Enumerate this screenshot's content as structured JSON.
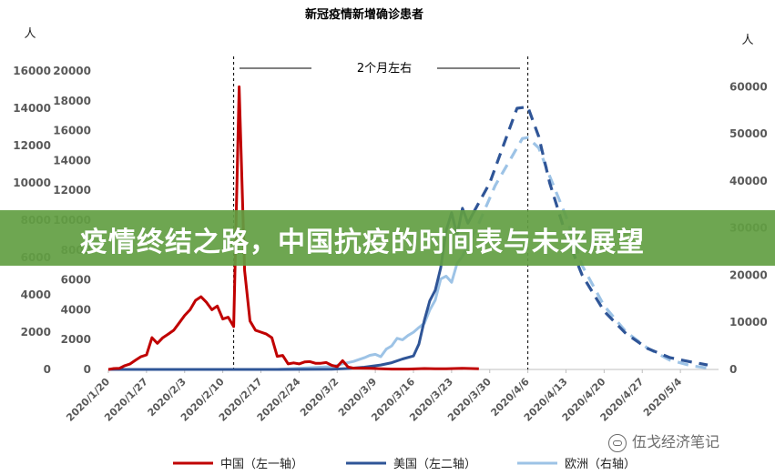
{
  "banner": {
    "title": "疫情终结之路，中国抗疫的时间表与未来展望"
  },
  "watermark": {
    "text": "伍戈经济笔记",
    "icon": "wechat-icon"
  },
  "chart_data": {
    "type": "line",
    "title": "新冠疫情新增确诊患者",
    "annotation": "2个月左右",
    "y_unit_left": "人",
    "y_unit_right": "人",
    "grid": false,
    "legend_position": "bottom",
    "x_ticks": [
      "2020/1/20",
      "2020/1/27",
      "2020/2/3",
      "2020/2/10",
      "2020/2/17",
      "2020/2/24",
      "2020/3/2",
      "2020/3/9",
      "2020/3/16",
      "2020/3/23",
      "2020/3/30",
      "2020/4/6",
      "2020/4/13",
      "2020/4/20",
      "2020/4/27",
      "2020/5/4"
    ],
    "axes": {
      "left1": {
        "ticks": [
          0,
          2000,
          4000,
          6000,
          8000,
          10000,
          12000,
          14000,
          16000
        ],
        "range": [
          0,
          16000
        ],
        "for": "中国"
      },
      "left2": {
        "ticks": [
          0,
          2000,
          4000,
          6000,
          8000,
          10000,
          12000,
          14000,
          16000,
          18000,
          20000
        ],
        "range": [
          0,
          20000
        ],
        "for": "美国"
      },
      "right": {
        "ticks": [
          0,
          10000,
          20000,
          30000,
          40000,
          50000,
          60000
        ],
        "range": [
          0,
          63333
        ],
        "for": "欧洲"
      }
    },
    "vlines": [
      "2020/2/12",
      "2020/4/6"
    ],
    "series": [
      {
        "name": "中国（左一轴）",
        "axis": "left1",
        "color": "#c00000",
        "style": "solid",
        "points": [
          [
            "2020/1/20",
            0
          ],
          [
            "2020/1/21",
            50
          ],
          [
            "2020/1/22",
            60
          ],
          [
            "2020/1/23",
            200
          ],
          [
            "2020/1/24",
            300
          ],
          [
            "2020/1/25",
            500
          ],
          [
            "2020/1/26",
            690
          ],
          [
            "2020/1/27",
            780
          ],
          [
            "2020/1/28",
            1700
          ],
          [
            "2020/1/29",
            1400
          ],
          [
            "2020/1/30",
            1700
          ],
          [
            "2020/1/31",
            1900
          ],
          [
            "2020/2/1",
            2100
          ],
          [
            "2020/2/2",
            2500
          ],
          [
            "2020/2/3",
            2900
          ],
          [
            "2020/2/4",
            3200
          ],
          [
            "2020/2/5",
            3700
          ],
          [
            "2020/2/6",
            3900
          ],
          [
            "2020/2/7",
            3600
          ],
          [
            "2020/2/8",
            3200
          ],
          [
            "2020/2/9",
            3400
          ],
          [
            "2020/2/10",
            2700
          ],
          [
            "2020/2/11",
            2800
          ],
          [
            "2020/2/12",
            2300
          ],
          [
            "2020/2/13",
            15150
          ],
          [
            "2020/2/14",
            5300
          ],
          [
            "2020/2/15",
            2600
          ],
          [
            "2020/2/16",
            2100
          ],
          [
            "2020/2/17",
            2000
          ],
          [
            "2020/2/18",
            1900
          ],
          [
            "2020/2/19",
            1700
          ],
          [
            "2020/2/20",
            700
          ],
          [
            "2020/2/21",
            750
          ],
          [
            "2020/2/22",
            300
          ],
          [
            "2020/2/23",
            350
          ],
          [
            "2020/2/24",
            300
          ],
          [
            "2020/2/25",
            400
          ],
          [
            "2020/2/26",
            420
          ],
          [
            "2020/2/27",
            330
          ],
          [
            "2020/2/28",
            330
          ],
          [
            "2020/2/29",
            370
          ],
          [
            "2020/3/1",
            220
          ],
          [
            "2020/3/2",
            150
          ],
          [
            "2020/3/3",
            470
          ],
          [
            "2020/3/4",
            130
          ],
          [
            "2020/3/5",
            70
          ],
          [
            "2020/3/6",
            70
          ],
          [
            "2020/3/8",
            60
          ],
          [
            "2020/3/10",
            40
          ],
          [
            "2020/3/12",
            20
          ],
          [
            "2020/3/15",
            20
          ],
          [
            "2020/3/18",
            50
          ],
          [
            "2020/3/20",
            40
          ],
          [
            "2020/3/22",
            40
          ],
          [
            "2020/3/25",
            60
          ],
          [
            "2020/3/28",
            40
          ]
        ]
      },
      {
        "name": "美国（左二轴）",
        "axis": "left2",
        "color": "#2f5597",
        "style": "solid",
        "points": [
          [
            "2020/1/20",
            0
          ],
          [
            "2020/2/20",
            0
          ],
          [
            "2020/3/1",
            20
          ],
          [
            "2020/3/4",
            60
          ],
          [
            "2020/3/7",
            150
          ],
          [
            "2020/3/10",
            300
          ],
          [
            "2020/3/12",
            450
          ],
          [
            "2020/3/14",
            700
          ],
          [
            "2020/3/16",
            900
          ],
          [
            "2020/3/17",
            1700
          ],
          [
            "2020/3/18",
            3300
          ],
          [
            "2020/3/19",
            4600
          ],
          [
            "2020/3/20",
            5300
          ],
          [
            "2020/3/21",
            6800
          ],
          [
            "2020/3/22",
            9300
          ],
          [
            "2020/3/23",
            10500
          ],
          [
            "2020/3/24",
            9000
          ],
          [
            "2020/3/25",
            10800
          ],
          [
            "2020/3/26",
            9800
          ],
          [
            "2020/3/27",
            10500
          ]
        ]
      },
      {
        "name": "美国（左二轴）预测",
        "axis": "left2",
        "color": "#2f5597",
        "style": "dashed",
        "points": [
          [
            "2020/3/27",
            10500
          ],
          [
            "2020/3/30",
            12500
          ],
          [
            "2020/4/2",
            15500
          ],
          [
            "2020/4/4",
            17500
          ],
          [
            "2020/4/6",
            17600
          ],
          [
            "2020/4/8",
            15600
          ],
          [
            "2020/4/10",
            12500
          ],
          [
            "2020/4/13",
            9000
          ],
          [
            "2020/4/16",
            6300
          ],
          [
            "2020/4/20",
            3900
          ],
          [
            "2020/4/24",
            2400
          ],
          [
            "2020/4/28",
            1400
          ],
          [
            "2020/5/2",
            800
          ],
          [
            "2020/5/6",
            500
          ],
          [
            "2020/5/9",
            300
          ]
        ]
      },
      {
        "name": "欧洲（右轴）",
        "axis": "right",
        "color": "#9dc3e6",
        "style": "solid",
        "points": [
          [
            "2020/1/20",
            0
          ],
          [
            "2020/2/20",
            0
          ],
          [
            "2020/3/1",
            600
          ],
          [
            "2020/3/3",
            1200
          ],
          [
            "2020/3/5",
            1700
          ],
          [
            "2020/3/7",
            2500
          ],
          [
            "2020/3/8",
            3000
          ],
          [
            "2020/3/9",
            3200
          ],
          [
            "2020/3/10",
            2700
          ],
          [
            "2020/3/11",
            4300
          ],
          [
            "2020/3/12",
            5000
          ],
          [
            "2020/3/13",
            6600
          ],
          [
            "2020/3/14",
            6300
          ],
          [
            "2020/3/15",
            7200
          ],
          [
            "2020/3/16",
            7900
          ],
          [
            "2020/3/17",
            8900
          ],
          [
            "2020/3/18",
            9800
          ],
          [
            "2020/3/19",
            12600
          ],
          [
            "2020/3/20",
            14700
          ],
          [
            "2020/3/21",
            19200
          ],
          [
            "2020/3/22",
            19800
          ],
          [
            "2020/3/23",
            18500
          ],
          [
            "2020/3/24",
            22500
          ],
          [
            "2020/3/25",
            24000
          ]
        ]
      },
      {
        "name": "欧洲（右轴）预测",
        "axis": "right",
        "color": "#9dc3e6",
        "style": "dashed",
        "points": [
          [
            "2020/3/25",
            24000
          ],
          [
            "2020/3/28",
            31000
          ],
          [
            "2020/3/31",
            39000
          ],
          [
            "2020/4/3",
            45000
          ],
          [
            "2020/4/5",
            49000
          ],
          [
            "2020/4/6",
            49200
          ],
          [
            "2020/4/8",
            47000
          ],
          [
            "2020/4/10",
            41000
          ],
          [
            "2020/4/13",
            32500
          ],
          [
            "2020/4/16",
            22000
          ],
          [
            "2020/4/20",
            13500
          ],
          [
            "2020/4/24",
            8000
          ],
          [
            "2020/4/28",
            4500
          ],
          [
            "2020/5/2",
            2000
          ],
          [
            "2020/5/6",
            800
          ],
          [
            "2020/5/9",
            300
          ]
        ]
      }
    ],
    "legend": [
      {
        "label": "中国（左一轴）",
        "color": "#c00000",
        "style": "solid"
      },
      {
        "label": "美国（左二轴）",
        "color": "#2f5597",
        "style": "solid"
      },
      {
        "label": "欧洲（右轴）",
        "color": "#9dc3e6",
        "style": "solid"
      }
    ]
  }
}
